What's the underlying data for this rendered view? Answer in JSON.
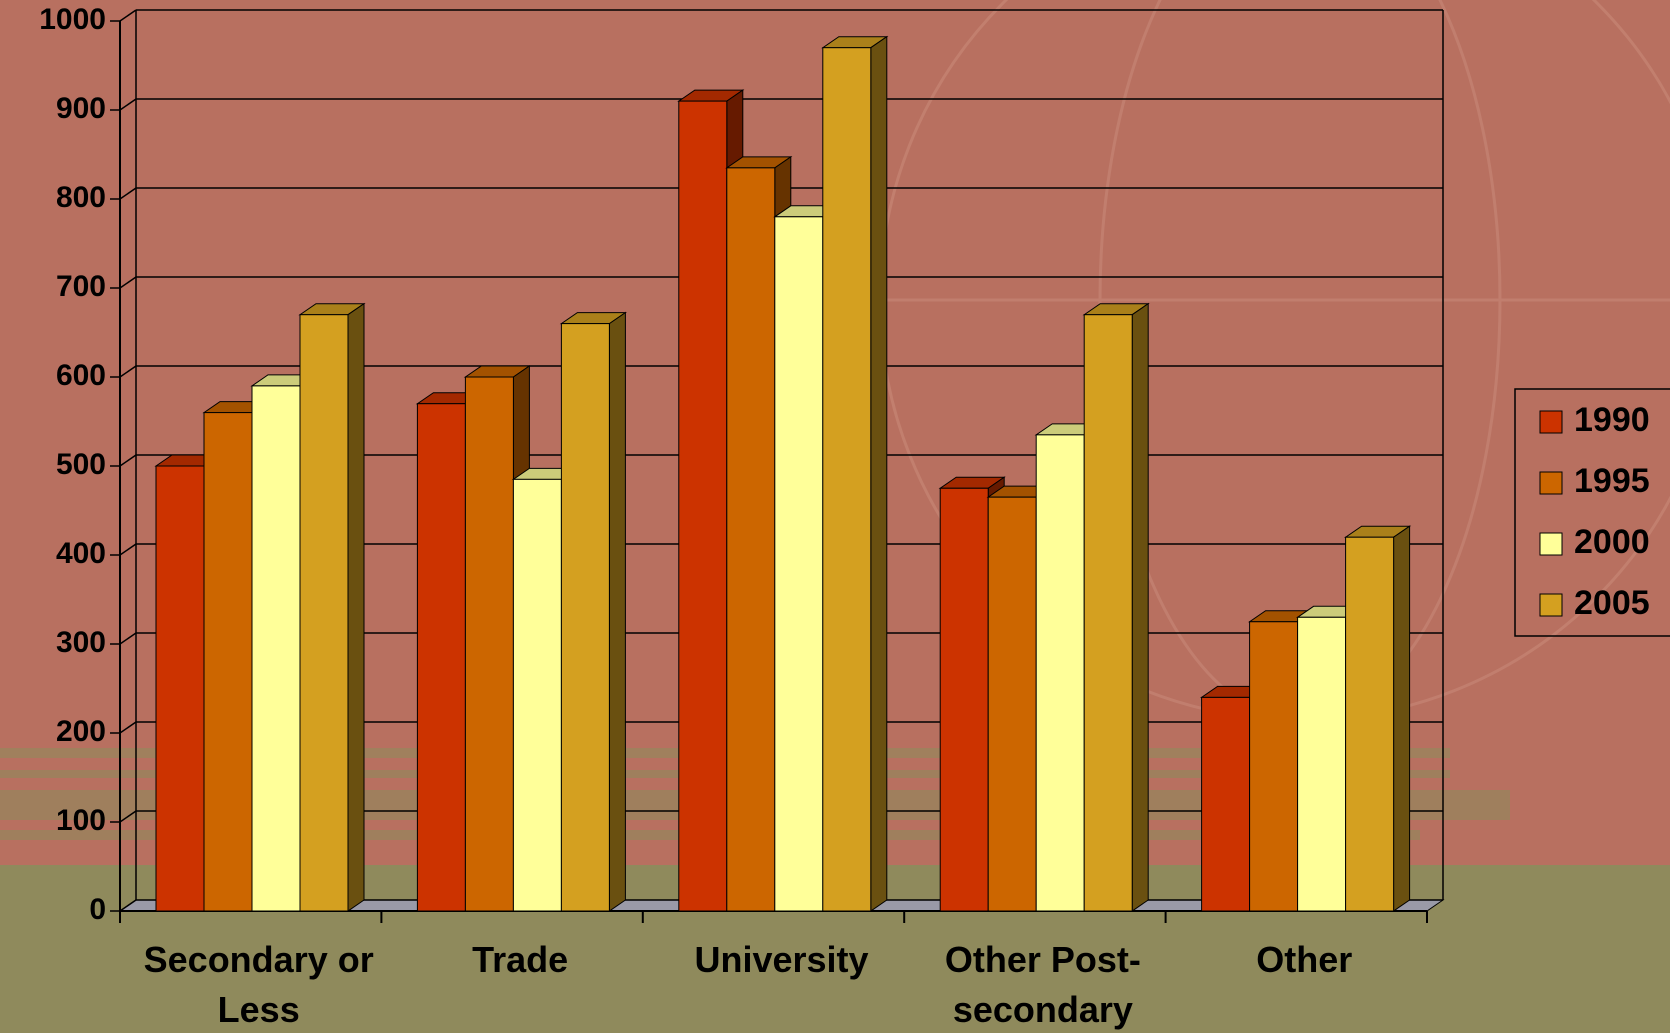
{
  "chart_data": {
    "type": "bar3d",
    "categories": [
      "Secondary or Less",
      "Trade",
      "University",
      "Other Post-secondary",
      "Other"
    ],
    "series": [
      {
        "name": "1990",
        "color": "#cc3300",
        "values": [
          500,
          570,
          910,
          475,
          240
        ]
      },
      {
        "name": "1995",
        "color": "#cc6600",
        "values": [
          560,
          600,
          835,
          465,
          325
        ]
      },
      {
        "name": "2000",
        "color": "#ffff99",
        "values": [
          590,
          485,
          780,
          535,
          330
        ]
      },
      {
        "name": "2005",
        "color": "#d4a020",
        "values": [
          670,
          660,
          970,
          670,
          420
        ]
      }
    ],
    "ylim": [
      0,
      1000
    ],
    "yticks": [
      0,
      100,
      200,
      300,
      400,
      500,
      600,
      700,
      800,
      900,
      1000
    ],
    "grid": true,
    "legend": "right"
  }
}
